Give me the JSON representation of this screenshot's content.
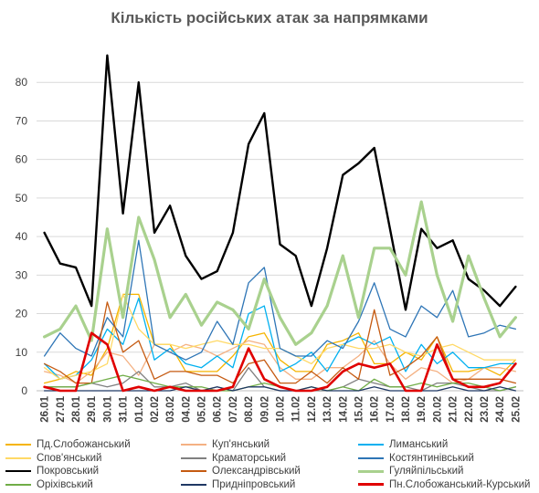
{
  "chart_data": {
    "type": "line",
    "title": "Кількість російських атак за напрямками",
    "xlabel": "",
    "ylabel": "",
    "ylim": [
      0,
      90
    ],
    "yticks": [
      "0",
      "10",
      "20",
      "30",
      "40",
      "50",
      "60",
      "70",
      "80"
    ],
    "grid": true,
    "legend_position": "bottom",
    "categories": [
      "26.01",
      "27.01",
      "28.01",
      "29.01",
      "30.01",
      "31.01",
      "01.02",
      "02.02",
      "03.02",
      "04.02",
      "05.02",
      "06.02",
      "07.02",
      "08.02",
      "09.02",
      "10.02",
      "11.02",
      "12.02",
      "13.02",
      "14.02",
      "15.02",
      "16.02",
      "17.02",
      "18.02",
      "19.02",
      "20.02",
      "21.02",
      "22.02",
      "23.02",
      "24.02",
      "25.02"
    ],
    "series": [
      {
        "name": "Пд.Слобожанський",
        "color": "#F5B400",
        "width": 1.3,
        "values": [
          2,
          3,
          5,
          4,
          11,
          25,
          25,
          12,
          12,
          5,
          5,
          5,
          9,
          14,
          15,
          8,
          5,
          5,
          12,
          13,
          15,
          7,
          7,
          10,
          8,
          14,
          5,
          5,
          6,
          4,
          8
        ]
      },
      {
        "name": "Куп'янський",
        "color": "#F4B183",
        "width": 1.3,
        "values": [
          5,
          4,
          2,
          5,
          10,
          9,
          4,
          12,
          10,
          12,
          11,
          9,
          11,
          13,
          12,
          6,
          3,
          3,
          6,
          6,
          9,
          13,
          7,
          3,
          6,
          5,
          2,
          3,
          6,
          6,
          5
        ]
      },
      {
        "name": "Лиманський",
        "color": "#00B0F0",
        "width": 1.3,
        "values": [
          7,
          3,
          4,
          8,
          16,
          12,
          24,
          8,
          11,
          7,
          6,
          9,
          6,
          20,
          22,
          5,
          7,
          10,
          5,
          12,
          14,
          12,
          14,
          5,
          12,
          7,
          10,
          6,
          6,
          7,
          7
        ]
      },
      {
        "name": "Спов'янський",
        "color": "#FFD966",
        "width": 1.3,
        "values": [
          6,
          3,
          4,
          5,
          7,
          25,
          16,
          12,
          12,
          11,
          12,
          13,
          12,
          12,
          11,
          11,
          9,
          7,
          11,
          12,
          11,
          11,
          12,
          10,
          9,
          11,
          12,
          10,
          8,
          8,
          8
        ]
      },
      {
        "name": "Краматорський",
        "color": "#808080",
        "width": 1.3,
        "values": [
          1,
          1,
          1,
          2,
          1,
          2,
          5,
          1,
          1,
          2,
          0,
          1,
          0,
          6,
          1,
          0,
          0,
          0,
          0,
          1,
          3,
          2,
          1,
          1,
          0,
          2,
          2,
          1,
          0,
          0,
          1
        ]
      },
      {
        "name": "Костянтинівський",
        "color": "#2E75B6",
        "width": 1.3,
        "values": [
          9,
          15,
          11,
          9,
          19,
          14,
          39,
          12,
          10,
          8,
          10,
          18,
          12,
          28,
          32,
          11,
          9,
          9,
          13,
          11,
          18,
          28,
          16,
          14,
          22,
          19,
          26,
          14,
          15,
          17,
          16
        ]
      },
      {
        "name": "Покровський",
        "color": "#000000",
        "width": 2.4,
        "values": [
          41,
          33,
          32,
          22,
          87,
          46,
          80,
          41,
          48,
          35,
          29,
          31,
          41,
          64,
          72,
          38,
          35,
          22,
          37,
          56,
          59,
          63,
          42,
          21,
          42,
          37,
          39,
          29,
          26,
          22,
          27
        ]
      },
      {
        "name": "Олександрівський",
        "color": "#C55A11",
        "width": 1.3,
        "values": [
          7,
          5,
          2,
          2,
          23,
          10,
          13,
          3,
          5,
          5,
          4,
          4,
          2,
          7,
          8,
          2,
          2,
          5,
          2,
          6,
          3,
          21,
          4,
          6,
          9,
          14,
          3,
          3,
          3,
          3,
          2
        ]
      },
      {
        "name": "Гуляйпільський",
        "color": "#A9D18E",
        "width": 3.2,
        "values": [
          14,
          16,
          22,
          13,
          42,
          19,
          45,
          34,
          19,
          25,
          17,
          23,
          21,
          16,
          29,
          19,
          12,
          15,
          22,
          35,
          19,
          37,
          37,
          30,
          49,
          30,
          18,
          35,
          24,
          14,
          19
        ]
      },
      {
        "name": "Оріхівський",
        "color": "#70AD47",
        "width": 1.3,
        "values": [
          1,
          1,
          1,
          2,
          3,
          4,
          3,
          2,
          1,
          1,
          1,
          0,
          0,
          1,
          2,
          1,
          0,
          1,
          0,
          1,
          0,
          3,
          1,
          1,
          2,
          1,
          2,
          2,
          1,
          0,
          1
        ]
      },
      {
        "name": "Придніпровський",
        "color": "#1F3864",
        "width": 1.3,
        "values": [
          0,
          0,
          0,
          0,
          0,
          0,
          0,
          0,
          0,
          1,
          0,
          1,
          0,
          1,
          1,
          0,
          0,
          1,
          0,
          0,
          0,
          1,
          0,
          0,
          0,
          0,
          1,
          0,
          0,
          1,
          0
        ]
      },
      {
        "name": "Пн.Слобожанський-Курський",
        "color": "#E00000",
        "width": 2.6,
        "values": [
          1,
          0,
          0,
          15,
          12,
          0,
          1,
          0,
          1,
          0,
          0,
          0,
          1,
          11,
          3,
          1,
          0,
          0,
          1,
          5,
          7,
          6,
          7,
          0,
          0,
          12,
          3,
          1,
          1,
          2,
          7
        ]
      }
    ]
  }
}
